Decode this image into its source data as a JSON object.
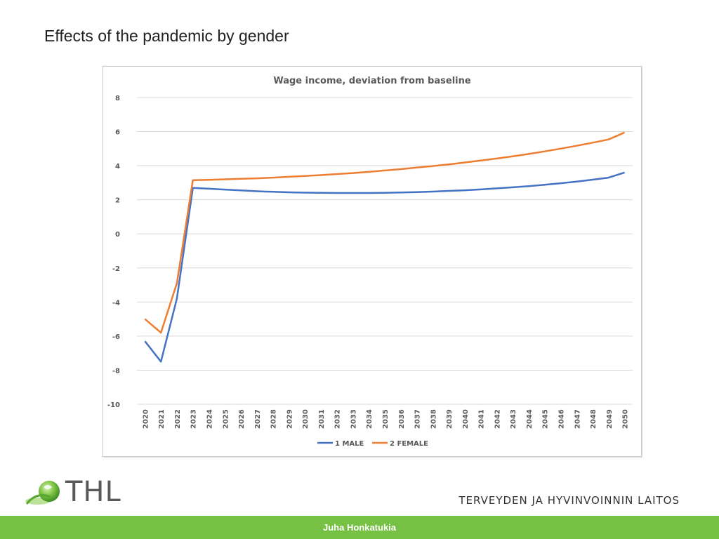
{
  "slide": {
    "title": "Effects of the pandemic by gender",
    "logo_text": "THL",
    "organization": "TERVEYDEN JA HYVINVOINNIN LAITOS",
    "footer_author": "Juha Honkatukia"
  },
  "colors": {
    "male": "#4472c4",
    "female": "#ed7d31",
    "footer": "#76c043",
    "grid": "#d9d9d9"
  },
  "chart_data": {
    "type": "line",
    "title": "Wage income, deviation from baseline",
    "xlabel": "",
    "ylabel": "",
    "ylim": [
      -10,
      8
    ],
    "yticks": [
      8,
      6,
      4,
      2,
      0,
      -2,
      -4,
      -6,
      -8,
      -10
    ],
    "grid": true,
    "legend_position": "bottom",
    "x": [
      2020,
      2021,
      2022,
      2023,
      2024,
      2025,
      2026,
      2027,
      2028,
      2029,
      2030,
      2031,
      2032,
      2033,
      2034,
      2035,
      2036,
      2037,
      2038,
      2039,
      2040,
      2041,
      2042,
      2043,
      2044,
      2045,
      2046,
      2047,
      2048,
      2049,
      2050
    ],
    "series": [
      {
        "name": "1 MALE",
        "values": [
          -6.3,
          -7.5,
          -3.8,
          2.7,
          2.65,
          2.6,
          2.55,
          2.5,
          2.47,
          2.44,
          2.42,
          2.41,
          2.4,
          2.4,
          2.4,
          2.41,
          2.43,
          2.45,
          2.48,
          2.52,
          2.56,
          2.61,
          2.67,
          2.73,
          2.8,
          2.88,
          2.97,
          3.07,
          3.18,
          3.3,
          3.6
        ]
      },
      {
        "name": "2 FEMALE",
        "values": [
          -5.0,
          -5.8,
          -2.9,
          3.15,
          3.17,
          3.2,
          3.23,
          3.26,
          3.3,
          3.35,
          3.4,
          3.45,
          3.51,
          3.57,
          3.64,
          3.72,
          3.8,
          3.89,
          3.98,
          4.08,
          4.19,
          4.3,
          4.42,
          4.55,
          4.69,
          4.84,
          5.0,
          5.17,
          5.35,
          5.54,
          5.95
        ]
      }
    ]
  }
}
